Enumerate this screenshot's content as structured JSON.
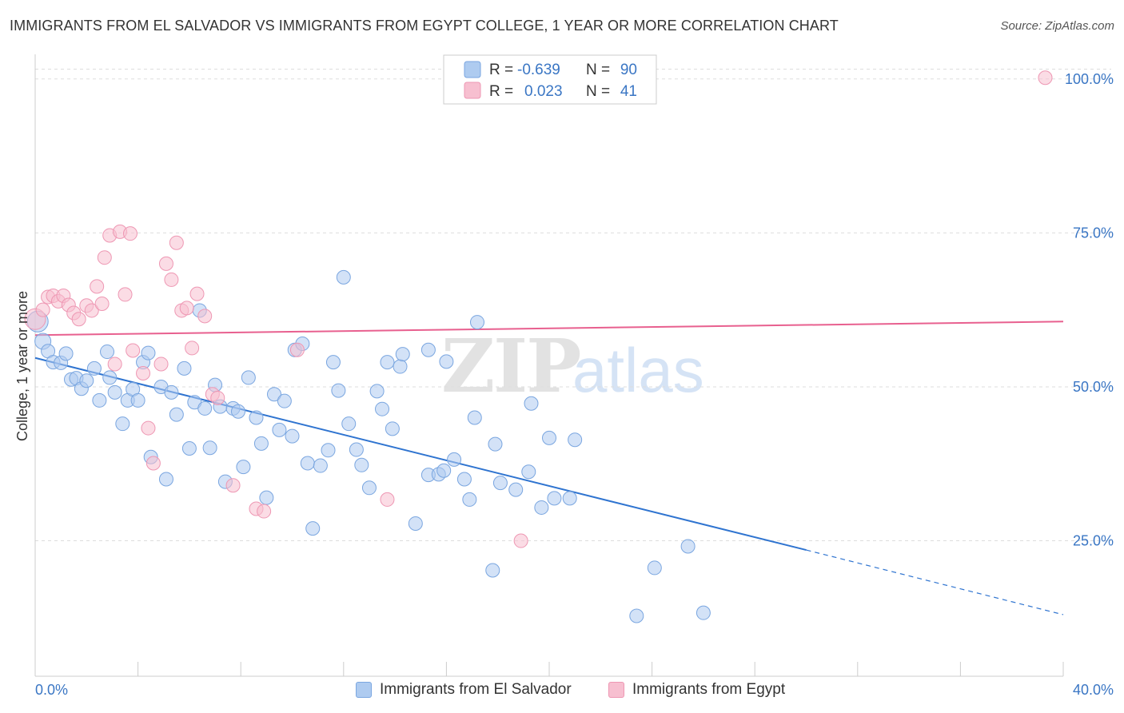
{
  "title": "IMMIGRANTS FROM EL SALVADOR VS IMMIGRANTS FROM EGYPT COLLEGE, 1 YEAR OR MORE CORRELATION CHART",
  "source": "Source: ZipAtlas.com",
  "watermark": {
    "zip": "ZIP",
    "atlas": "atlas"
  },
  "colors": {
    "blue_fill": "#aecbf0",
    "blue_stroke": "#7aa6e0",
    "blue_line": "#2f74d0",
    "pink_fill": "#f7bfd0",
    "pink_stroke": "#ee97b3",
    "pink_line": "#e8608f",
    "value_text": "#3a76c4",
    "grid": "#dddddd"
  },
  "legend_box": {
    "rows": [
      {
        "r_label": "R =",
        "r_value": "-0.639",
        "n_label": "N =",
        "n_value": "90"
      },
      {
        "r_label": "R =",
        "r_value": "0.023",
        "n_label": "N =",
        "n_value": "41"
      }
    ]
  },
  "chart_data": {
    "type": "scatter",
    "title": "IMMIGRANTS FROM EL SALVADOR VS IMMIGRANTS FROM EGYPT COLLEGE, 1 YEAR OR MORE CORRELATION CHART",
    "xlabel": "",
    "ylabel": "College, 1 year or more",
    "xlim": [
      0,
      40
    ],
    "ylim": [
      3,
      104
    ],
    "x_tick_labels": [
      "0.0%",
      "40.0%"
    ],
    "y_ticks": [
      25,
      50,
      75,
      100
    ],
    "y_tick_labels": [
      "25.0%",
      "50.0%",
      "75.0%",
      "100.0%"
    ],
    "grid": true,
    "legend_position": "bottom",
    "series": [
      {
        "name": "Immigrants from El Salvador",
        "color": "#aecbf0",
        "trend": {
          "x0": 0,
          "y0": 54.7,
          "x1": 30,
          "y1": 23.5,
          "dashed_to_x": 40,
          "dashed_to_y": 13.0
        },
        "points": [
          [
            0.1,
            60.6
          ],
          [
            0.3,
            57.4
          ],
          [
            0.5,
            55.8
          ],
          [
            0.7,
            54.0
          ],
          [
            1.0,
            53.9
          ],
          [
            1.2,
            55.4
          ],
          [
            1.4,
            51.2
          ],
          [
            1.6,
            51.4
          ],
          [
            1.8,
            49.7
          ],
          [
            2.0,
            51.0
          ],
          [
            2.3,
            53.0
          ],
          [
            2.5,
            47.8
          ],
          [
            2.8,
            55.7
          ],
          [
            2.9,
            51.5
          ],
          [
            3.1,
            49.1
          ],
          [
            3.4,
            44.0
          ],
          [
            3.6,
            47.8
          ],
          [
            3.8,
            49.6
          ],
          [
            4.0,
            47.8
          ],
          [
            4.2,
            54.0
          ],
          [
            4.4,
            55.5
          ],
          [
            4.5,
            38.6
          ],
          [
            4.9,
            50.0
          ],
          [
            5.1,
            35.0
          ],
          [
            5.3,
            49.1
          ],
          [
            5.5,
            45.5
          ],
          [
            5.8,
            53.0
          ],
          [
            6.0,
            40.0
          ],
          [
            6.2,
            47.5
          ],
          [
            6.4,
            62.4
          ],
          [
            6.6,
            46.5
          ],
          [
            6.8,
            40.1
          ],
          [
            7.0,
            50.3
          ],
          [
            7.2,
            46.8
          ],
          [
            7.4,
            34.6
          ],
          [
            7.7,
            46.5
          ],
          [
            7.9,
            46.0
          ],
          [
            8.1,
            37.0
          ],
          [
            8.3,
            51.5
          ],
          [
            8.6,
            45.0
          ],
          [
            8.8,
            40.8
          ],
          [
            9.0,
            32.0
          ],
          [
            9.3,
            48.8
          ],
          [
            9.5,
            43.0
          ],
          [
            9.7,
            47.7
          ],
          [
            10.0,
            42.0
          ],
          [
            10.1,
            56.0
          ],
          [
            10.4,
            57.0
          ],
          [
            10.6,
            37.6
          ],
          [
            10.8,
            27.0
          ],
          [
            11.1,
            37.2
          ],
          [
            11.4,
            39.7
          ],
          [
            11.6,
            54.0
          ],
          [
            11.8,
            49.4
          ],
          [
            12.0,
            67.8
          ],
          [
            12.2,
            44.0
          ],
          [
            12.5,
            39.8
          ],
          [
            12.7,
            37.3
          ],
          [
            13.0,
            33.6
          ],
          [
            13.3,
            49.3
          ],
          [
            13.5,
            46.4
          ],
          [
            13.7,
            54.0
          ],
          [
            13.9,
            43.2
          ],
          [
            14.2,
            53.3
          ],
          [
            14.3,
            55.3
          ],
          [
            14.8,
            27.8
          ],
          [
            15.3,
            35.7
          ],
          [
            15.7,
            35.8
          ],
          [
            15.9,
            36.4
          ],
          [
            15.3,
            56.0
          ],
          [
            16.0,
            54.1
          ],
          [
            16.3,
            38.2
          ],
          [
            16.7,
            35.0
          ],
          [
            16.9,
            31.7
          ],
          [
            17.1,
            45.0
          ],
          [
            17.2,
            60.5
          ],
          [
            17.8,
            20.2
          ],
          [
            17.9,
            40.7
          ],
          [
            18.1,
            34.4
          ],
          [
            18.7,
            33.3
          ],
          [
            19.2,
            36.2
          ],
          [
            19.3,
            47.3
          ],
          [
            19.7,
            30.4
          ],
          [
            20.0,
            41.7
          ],
          [
            20.2,
            31.9
          ],
          [
            20.8,
            31.9
          ],
          [
            21.0,
            41.4
          ],
          [
            23.4,
            12.8
          ],
          [
            24.1,
            20.6
          ],
          [
            25.4,
            24.1
          ],
          [
            26.0,
            13.3
          ]
        ]
      },
      {
        "name": "Immigrants from Egypt",
        "color": "#f7bfd0",
        "trend": {
          "x0": 0,
          "y0": 58.4,
          "x1": 40,
          "y1": 60.6
        },
        "points": [
          [
            0.0,
            61.0
          ],
          [
            0.3,
            62.5
          ],
          [
            0.5,
            64.6
          ],
          [
            0.7,
            64.8
          ],
          [
            0.9,
            63.9
          ],
          [
            1.1,
            64.8
          ],
          [
            1.3,
            63.3
          ],
          [
            1.5,
            62.0
          ],
          [
            1.7,
            61.0
          ],
          [
            2.0,
            63.2
          ],
          [
            2.2,
            62.4
          ],
          [
            2.4,
            66.3
          ],
          [
            2.6,
            63.5
          ],
          [
            2.7,
            71.0
          ],
          [
            2.9,
            74.6
          ],
          [
            3.1,
            53.7
          ],
          [
            3.3,
            75.2
          ],
          [
            3.5,
            65.0
          ],
          [
            3.7,
            74.9
          ],
          [
            3.8,
            55.9
          ],
          [
            4.2,
            52.2
          ],
          [
            4.4,
            43.3
          ],
          [
            4.6,
            37.6
          ],
          [
            4.9,
            53.7
          ],
          [
            5.1,
            70.0
          ],
          [
            5.3,
            67.4
          ],
          [
            5.5,
            73.4
          ],
          [
            5.7,
            62.4
          ],
          [
            5.9,
            62.8
          ],
          [
            6.1,
            56.3
          ],
          [
            6.3,
            65.1
          ],
          [
            6.6,
            61.5
          ],
          [
            6.9,
            48.8
          ],
          [
            7.1,
            48.2
          ],
          [
            7.7,
            34.0
          ],
          [
            8.6,
            30.2
          ],
          [
            8.9,
            29.8
          ],
          [
            10.2,
            56.0
          ],
          [
            13.7,
            31.7
          ],
          [
            18.9,
            25.0
          ],
          [
            39.3,
            100.2
          ]
        ]
      }
    ]
  },
  "bottom_legend": [
    {
      "label": "Immigrants from El Salvador"
    },
    {
      "label": "Immigrants from Egypt"
    }
  ]
}
